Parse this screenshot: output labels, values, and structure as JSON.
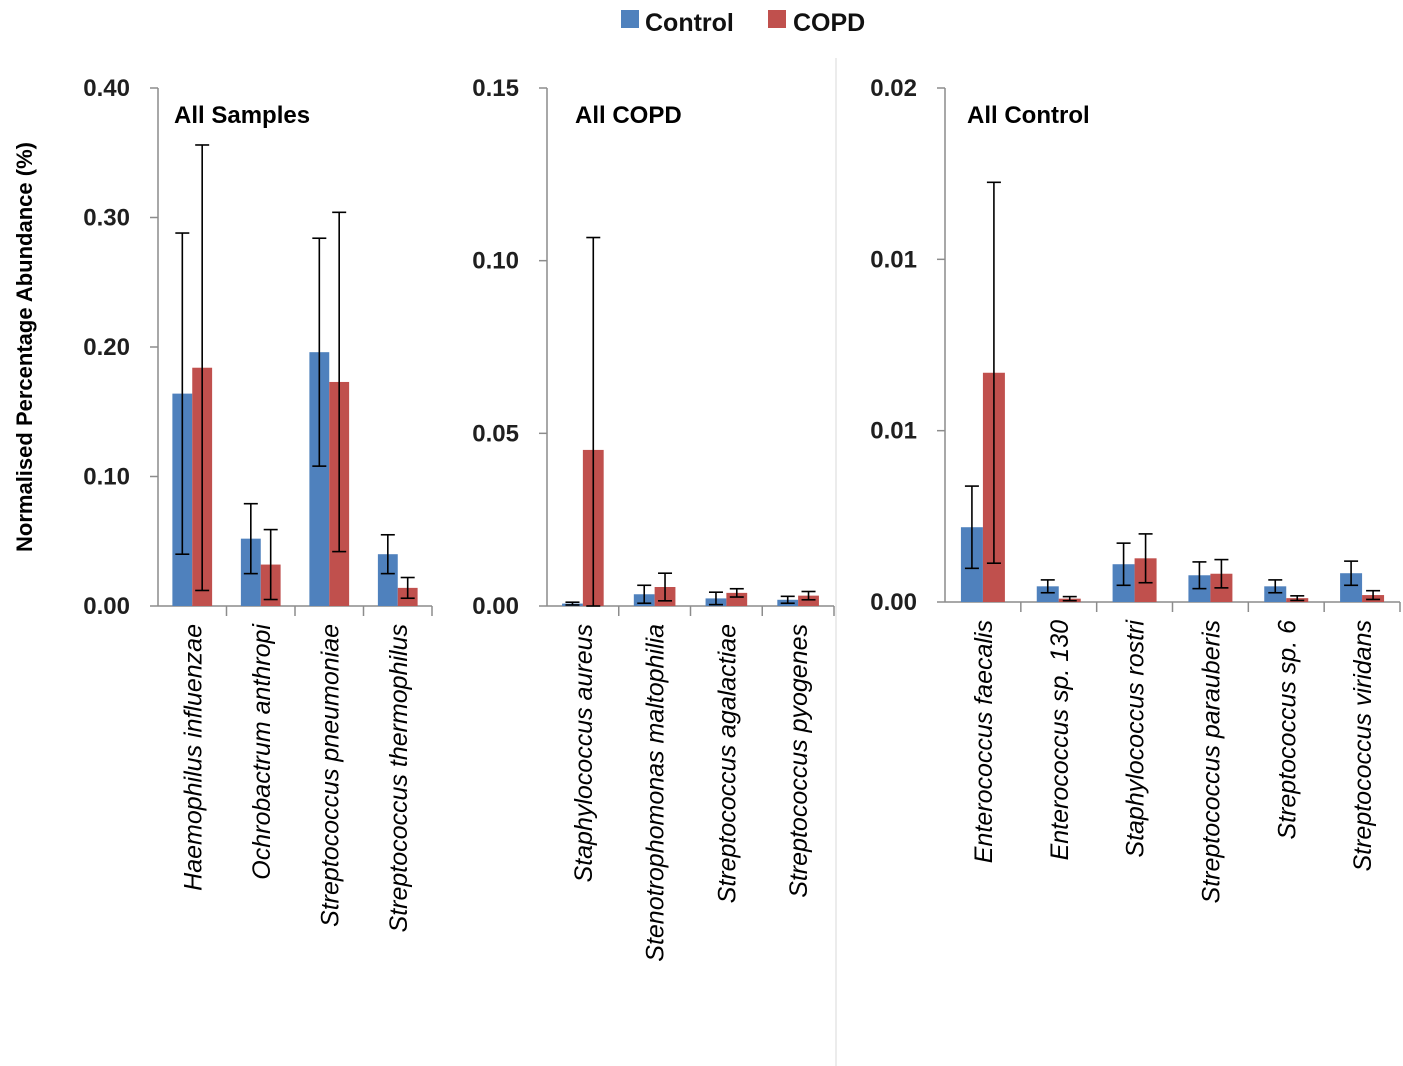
{
  "legend": [
    {
      "label": "Control",
      "color": "#4f81bd"
    },
    {
      "label": "COPD",
      "color": "#c0504d"
    }
  ],
  "ylabel": "Normalised Percentage Abundance (%)",
  "chart_data": [
    {
      "type": "bar",
      "title": "All Samples",
      "ylabel": "Normalised Percentage Abundance (%)",
      "ylim": [
        0,
        0.4
      ],
      "yticks": [
        "0.00",
        "0.10",
        "0.20",
        "0.30",
        "0.40"
      ],
      "categories": [
        "Haemophilus influenzae",
        "Ochrobactrum anthropi",
        "Streptococcus pneumoniae",
        "Streptococcus thermophilus"
      ],
      "series": [
        {
          "name": "Control",
          "values": [
            0.164,
            0.052,
            0.196,
            0.04
          ],
          "err": [
            0.124,
            0.027,
            0.088,
            0.015
          ]
        },
        {
          "name": "COPD",
          "values": [
            0.184,
            0.032,
            0.173,
            0.014
          ],
          "err": [
            0.172,
            0.027,
            0.131,
            0.008
          ]
        }
      ]
    },
    {
      "type": "bar",
      "title": "All COPD",
      "ylim": [
        0,
        0.15
      ],
      "yticks": [
        "0.00",
        "0.05",
        "0.10",
        "0.15"
      ],
      "categories": [
        "Staphylococcus aureus",
        "Stenotrophomonas maltophilia",
        "Streptococcus agalactiae",
        "Streptococcus pyogenes"
      ],
      "series": [
        {
          "name": "Control",
          "values": [
            0.0007,
            0.0034,
            0.0022,
            0.0018
          ],
          "err": [
            0.0004,
            0.0026,
            0.0018,
            0.001
          ]
        },
        {
          "name": "COPD",
          "values": [
            0.0452,
            0.0055,
            0.0038,
            0.003
          ],
          "err": [
            0.0615,
            0.004,
            0.0012,
            0.0012
          ]
        }
      ]
    },
    {
      "type": "bar",
      "title": "All Control",
      "ylim": [
        0,
        0.02
      ],
      "yticks": [
        "0.00",
        "0.01",
        "0.01",
        "0.02"
      ],
      "categories": [
        "Enterococcus faecalis",
        "Enterococcus sp. 130",
        "Staphylococcus rostri",
        "Streptococcus parauberis",
        "Streptococcus sp. 6",
        "Streptococcus viridans"
      ],
      "series": [
        {
          "name": "Control",
          "values": [
            0.00291,
            0.00061,
            0.00147,
            0.00104,
            0.00061,
            0.00112
          ],
          "err": [
            0.0016,
            0.00025,
            0.00082,
            0.00052,
            0.00025,
            0.00047
          ]
        },
        {
          "name": "COPD",
          "values": [
            0.00892,
            0.00013,
            0.0017,
            0.0011,
            0.00015,
            0.00027
          ],
          "err": [
            0.00741,
            8e-05,
            0.00095,
            0.00055,
            9e-05,
            0.00017
          ]
        }
      ]
    }
  ]
}
